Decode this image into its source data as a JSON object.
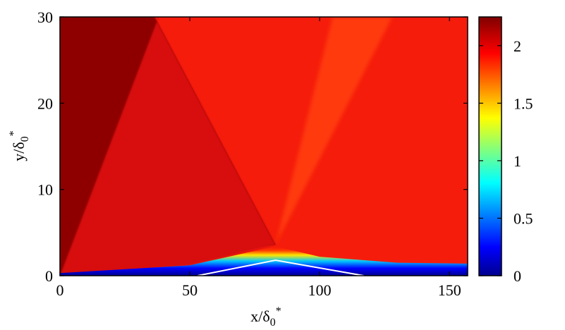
{
  "chart_data": {
    "type": "heatmap",
    "title": "",
    "xlabel": {
      "base": "x/δ",
      "sub": "0",
      "sup": "*"
    },
    "ylabel": {
      "base": "y/δ",
      "sub": "0",
      "sup": "*"
    },
    "xlim": [
      0,
      157
    ],
    "ylim": [
      0,
      30
    ],
    "clim": [
      0,
      2.25
    ],
    "x_ticks": [
      0,
      50,
      100,
      150
    ],
    "x_tick_labels": [
      "0",
      "50",
      "100",
      "150"
    ],
    "y_ticks": [
      0,
      10,
      20,
      30
    ],
    "y_tick_labels": [
      "0",
      "10",
      "20",
      "30"
    ],
    "colorbar": {
      "colormap": "jet",
      "ticks": [
        0,
        0.5,
        1,
        1.5,
        2
      ],
      "tick_labels": [
        "0",
        "0.5",
        "1",
        "1.5",
        "2"
      ]
    },
    "regions": [
      {
        "name": "freestream",
        "value": 2.25,
        "color": "#8e0000"
      },
      {
        "name": "post-incident-shock",
        "value": 2.12,
        "color": "#d81010"
      },
      {
        "name": "post-reflected-shock",
        "value": 2.0,
        "color": "#f51c0c"
      },
      {
        "name": "expansion-fan",
        "value": 2.05,
        "color": "#ff3a08"
      }
    ],
    "features": {
      "incident_shock": {
        "x": [
          36.5,
          83
        ],
        "y": [
          30,
          3.6
        ]
      },
      "leading_edge_shock": {
        "x": [
          0,
          38
        ],
        "y": [
          0,
          30
        ]
      },
      "reflected_shock": {
        "x": [
          83,
          105
        ],
        "y": [
          3.6,
          30
        ]
      },
      "expansion_edge": {
        "x": [
          83,
          128
        ],
        "y": [
          3.6,
          30
        ]
      },
      "boundary_layer_edge": {
        "x": [
          0,
          50,
          83,
          100,
          130,
          157
        ],
        "y": [
          0.3,
          1.2,
          3.4,
          2.2,
          1.5,
          1.4
        ]
      },
      "sonic_line": {
        "x": [
          53,
          83,
          117
        ],
        "y": [
          0,
          1.8,
          0
        ]
      }
    }
  }
}
